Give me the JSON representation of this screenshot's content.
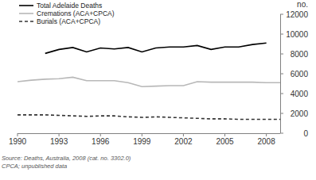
{
  "chart_data": {
    "type": "line",
    "y_label": "no.",
    "x": [
      1990,
      1991,
      1992,
      1993,
      1994,
      1995,
      1996,
      1997,
      1998,
      1999,
      2000,
      2001,
      2002,
      2003,
      2004,
      2005,
      2006,
      2007,
      2008,
      2009
    ],
    "series": [
      {
        "name": "Total Adelaide Deaths",
        "color": "#000000",
        "line_style": "solid",
        "values": [
          null,
          null,
          8050,
          8450,
          8650,
          8200,
          8600,
          8500,
          8650,
          8200,
          8600,
          8700,
          8700,
          8850,
          8450,
          8700,
          8700,
          8950,
          9100,
          null
        ]
      },
      {
        "name": "Cremations (ACA+CPCA)",
        "color": "#b8b8b8",
        "line_style": "solid",
        "values": [
          5200,
          5350,
          5450,
          5500,
          5650,
          5300,
          5300,
          5300,
          5100,
          4700,
          4750,
          4800,
          4800,
          5200,
          5150,
          5150,
          5150,
          5150,
          5100,
          5100
        ]
      },
      {
        "name": "Burials (ACA+CPCA)",
        "color": "#333333",
        "line_style": "dashed",
        "values": [
          1850,
          1850,
          1850,
          1800,
          1750,
          1700,
          1750,
          1750,
          1650,
          1600,
          1650,
          1600,
          1550,
          1500,
          1450,
          1450,
          1400,
          1400,
          1400,
          1400
        ]
      }
    ],
    "xlim": [
      1990,
      2009
    ],
    "xticks": [
      1990,
      1993,
      1996,
      1999,
      2002,
      2005,
      2008
    ],
    "ylim": [
      0,
      12000
    ],
    "yticks": [
      0,
      2000,
      4000,
      6000,
      8000,
      10000,
      12000
    ],
    "grid": false,
    "legend": "top-left",
    "source": [
      "Source: Deaths, Australia, 2008 (cat. no. 3302.0)",
      "CPCA; unpublished data"
    ]
  }
}
